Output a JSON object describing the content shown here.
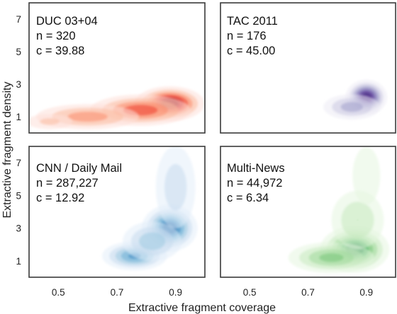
{
  "chart_data": {
    "type": "heatmap",
    "kind": "kde-contour",
    "xlabel": "Extractive fragment coverage",
    "ylabel": "Extractive fragment density",
    "xticks": [
      "0.5",
      "0.7",
      "0.9"
    ],
    "yticks": [
      "1",
      "3",
      "5",
      "7"
    ],
    "xlim": [
      0.4,
      1.0
    ],
    "ylim": [
      0,
      8
    ],
    "grid": false,
    "layout": "2x2 grid, shared axes",
    "panels": [
      {
        "name": "DUC 03+04",
        "n_label": "n = 320",
        "c_label": "c = 39.88",
        "colormap": "red",
        "colors": [
          "#fde0d8",
          "#fcbba1",
          "#fb8a6a",
          "#ef3b2c",
          "#c3131c",
          "#8b0f12"
        ],
        "density_centers": [
          {
            "x": 0.88,
            "y": 1.8,
            "sx": 0.05,
            "sy": 0.45,
            "w": 1.0
          },
          {
            "x": 0.78,
            "y": 1.4,
            "sx": 0.08,
            "sy": 0.45,
            "w": 0.6
          },
          {
            "x": 0.6,
            "y": 1.0,
            "sx": 0.09,
            "sy": 0.4,
            "w": 0.4
          },
          {
            "x": 0.47,
            "y": 0.7,
            "sx": 0.05,
            "sy": 0.3,
            "w": 0.2
          }
        ]
      },
      {
        "name": "TAC 2011",
        "n_label": "n = 176",
        "c_label": "c = 45.00",
        "colormap": "purple",
        "colors": [
          "#ecebf4",
          "#cbc9e2",
          "#a19fcb",
          "#7b6fb3",
          "#5a3b97",
          "#3d1a78"
        ],
        "density_centers": [
          {
            "x": 0.9,
            "y": 2.2,
            "sx": 0.03,
            "sy": 0.45,
            "w": 1.0
          },
          {
            "x": 0.85,
            "y": 1.6,
            "sx": 0.05,
            "sy": 0.4,
            "w": 0.4
          }
        ]
      },
      {
        "name": "CNN / Daily Mail",
        "n_label": "n = 287,227",
        "c_label": "c = 12.92",
        "colormap": "blue",
        "colors": [
          "#e3eef9",
          "#c6dbef",
          "#9ecae1",
          "#6baed6",
          "#3182bd",
          "#105ba4"
        ],
        "density_centers": [
          {
            "x": 0.88,
            "y": 3.0,
            "sx": 0.04,
            "sy": 0.6,
            "w": 1.0
          },
          {
            "x": 0.76,
            "y": 1.3,
            "sx": 0.05,
            "sy": 0.4,
            "w": 0.7
          },
          {
            "x": 0.82,
            "y": 2.2,
            "sx": 0.05,
            "sy": 0.6,
            "w": 0.45
          },
          {
            "x": 0.9,
            "y": 5.5,
            "sx": 0.04,
            "sy": 1.5,
            "w": 0.25
          }
        ]
      },
      {
        "name": "Multi-News",
        "n_label": "n = 44,972",
        "c_label": "c = 6.34",
        "colormap": "green",
        "colors": [
          "#e5f5e0",
          "#c7e9c0",
          "#a1d99b",
          "#74c476",
          "#31a354",
          "#006d2c"
        ],
        "density_centers": [
          {
            "x": 0.86,
            "y": 1.7,
            "sx": 0.05,
            "sy": 0.6,
            "w": 1.0
          },
          {
            "x": 0.78,
            "y": 1.2,
            "sx": 0.07,
            "sy": 0.45,
            "w": 0.55
          },
          {
            "x": 0.87,
            "y": 3.5,
            "sx": 0.05,
            "sy": 1.0,
            "w": 0.3
          },
          {
            "x": 0.9,
            "y": 6.2,
            "sx": 0.035,
            "sy": 1.3,
            "w": 0.15
          }
        ]
      }
    ]
  }
}
